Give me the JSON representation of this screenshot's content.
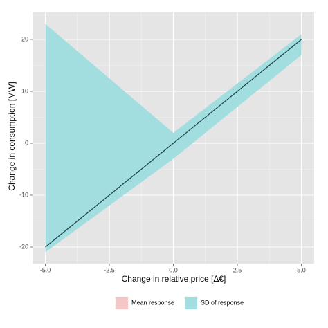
{
  "chart_data": {
    "type": "ribbon-line",
    "x_label": "Change in relative price [Δ€]",
    "y_label": "Change in consumption [MW]",
    "x": [
      -5,
      0,
      5
    ],
    "series": [
      {
        "name": "Mean response",
        "color": "#f4c7c6",
        "line_color": "#1d4249",
        "values": [
          -20,
          0,
          20
        ]
      },
      {
        "name": "SD of response",
        "color": "#a2dde0",
        "lower": [
          -21,
          -3,
          17
        ],
        "upper": [
          23,
          2,
          21
        ]
      }
    ],
    "xlim": [
      -5.5,
      5.5
    ],
    "xticks": [
      {
        "value": -5,
        "label": "-5.0"
      },
      {
        "value": -2.5,
        "label": "-2.5"
      },
      {
        "value": 0,
        "label": "0.0"
      },
      2.5,
      {
        "value": 5,
        "label": "5.0"
      }
    ],
    "ylim": [
      -23.2,
      25.2
    ],
    "yticks": [
      -20,
      -10,
      0,
      10,
      20
    ],
    "grid": true,
    "legend": "bottom"
  }
}
